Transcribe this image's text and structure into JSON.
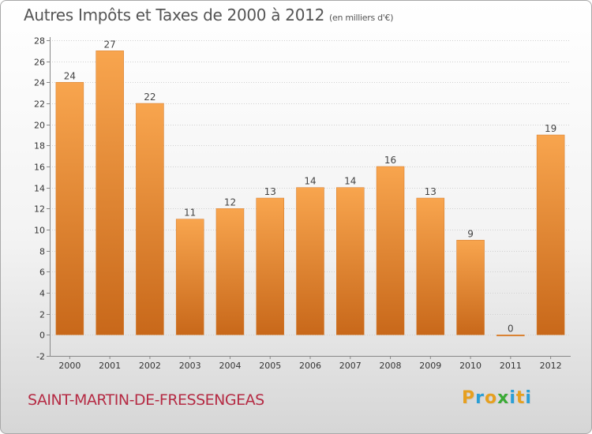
{
  "title": "Autres Impôts et Taxes de 2000 à 2012",
  "title_unit": "(en milliers d'€)",
  "commune": "SAINT-MARTIN-DE-FRESSENGEAS",
  "logo": {
    "letters": [
      "P",
      "r",
      "o",
      "x",
      "i",
      "t",
      "i"
    ],
    "colors": [
      "#e6a020",
      "#2a9fd6",
      "#e6a020",
      "#3aaa35",
      "#2a9fd6",
      "#e6a020",
      "#2a9fd6"
    ]
  },
  "colors": {
    "bar_top": "#f8a54e",
    "bar_bottom": "#c8681a",
    "axis_text": "#333333",
    "grid": "#d0d0d0"
  },
  "chart_data": {
    "type": "bar",
    "categories": [
      "2000",
      "2001",
      "2002",
      "2003",
      "2004",
      "2005",
      "2006",
      "2007",
      "2008",
      "2009",
      "2010",
      "2011",
      "2012"
    ],
    "values": [
      24,
      27,
      22,
      11,
      12,
      13,
      14,
      14,
      16,
      13,
      9,
      0,
      19
    ],
    "data_labels": [
      "24",
      "27",
      "22",
      "11",
      "12",
      "13",
      "14",
      "14",
      "16",
      "13",
      "9",
      "0",
      "19"
    ],
    "yticks": [
      "-2",
      "0",
      "2",
      "4",
      "6",
      "8",
      "10",
      "12",
      "14",
      "16",
      "18",
      "20",
      "22",
      "24",
      "26",
      "28"
    ],
    "ylim": [
      -2,
      28
    ],
    "grid": true
  }
}
